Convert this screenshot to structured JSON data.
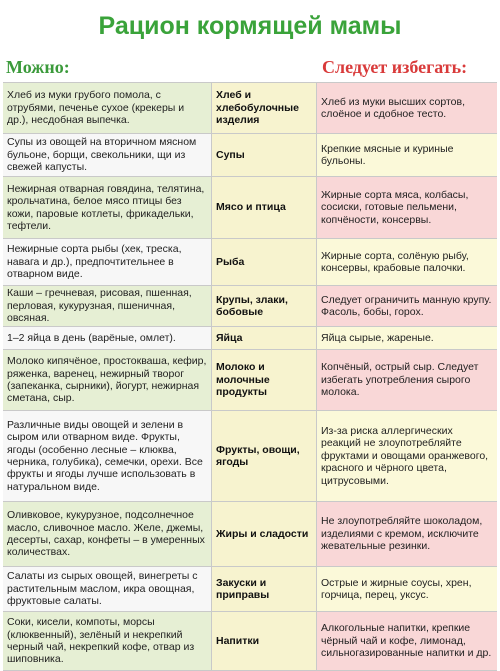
{
  "title": "Рацион кормящей мамы",
  "headers": {
    "can": "Можно:",
    "avoid": "Следует избегать:"
  },
  "rows": [
    {
      "can": "Хлеб из муки грубого помола, с отрубями, печенье сухое (крекеры и др.), несдобная выпечка.",
      "category": "Хлеб и хлебобулочные изделия",
      "avoid": "Хлеб из муки высших сортов, слоёное и сдобное тесто."
    },
    {
      "can": "Супы из овощей на вторичном мясном бульоне, борщи, свекольники, щи из свежей капусты.",
      "category": "Супы",
      "avoid": "Крепкие мясные и куриные бульоны."
    },
    {
      "can": "Нежирная отварная говядина, телятина, крольчатина, белое мясо птицы без кожи, паровые котлеты, фрикадельки, тефтели.",
      "category": "Мясо и птица",
      "avoid": "Жирные сорта мяса, колбасы, сосиски, готовые пельмени, копчёности, консервы."
    },
    {
      "can": "Нежирные сорта рыбы (хек, треска, навага и др.), предпочтительнее в отварном виде.",
      "category": "Рыба",
      "avoid": "Жирные сорта, солёную рыбу, консервы, крабовые палочки."
    },
    {
      "can": "Каши – гречневая, рисовая, пшенная, перловая, кукурузная, пшеничная, овсяная.",
      "category": "Крупы, злаки, бобовые",
      "avoid": "Следует ограничить манную крупу. Фасоль, бобы, горох."
    },
    {
      "can": "1–2 яйца в день (варёные, омлет).",
      "category": "Яйца",
      "avoid": "Яйца сырые, жареные."
    },
    {
      "can": "Молоко кипячёное, простокваша, кефир, ряженка, варенец, нежирный творог (запеканка, сырники), йогурт, нежирная сметана, сыр.",
      "category": "Молоко и молочные продукты",
      "avoid": "Копчёный, острый сыр. Следует избегать употребления сырого молока."
    },
    {
      "can": "Различные виды овощей и зелени в сыром или отварном виде. Фрукты, ягоды (особенно лесные – клюква, черника, голубика), семечки, орехи. Все фрукты и ягоды лучше использовать в натуральном виде.",
      "category": "Фрукты, овощи, ягоды",
      "avoid": "Из-за риска аллергических реакций не злоупотребляйте фруктами и овощами оранжевого, красного и чёрного цвета, цитрусовыми."
    },
    {
      "can": "Оливковое, кукурузное, подсолнечное масло, сливочное масло. Желе, джемы, десерты, сахар, конфеты – в умеренных количествах.",
      "category": "Жиры и сладости",
      "avoid": "Не злоупотребляйте шоколадом, изделиями с кремом, исключите жевательные резинки."
    },
    {
      "can": "Салаты из сырых овощей, винегреты с растительным маслом, икра овощная, фруктовые салаты.",
      "category": "Закуски и приправы",
      "avoid": "Острые и жирные соусы, хрен, горчица, перец, уксус."
    },
    {
      "can": "Соки, кисели, компоты, морсы (клюквенный), зелёный и некрепкий черный чай, некрепкий кофе, отвар из шиповника.",
      "category": "Напитки",
      "avoid": "Алкогольные напитки, крепкие чёрный чай и кофе, лимонад, сильногазированные напитки и др."
    }
  ]
}
